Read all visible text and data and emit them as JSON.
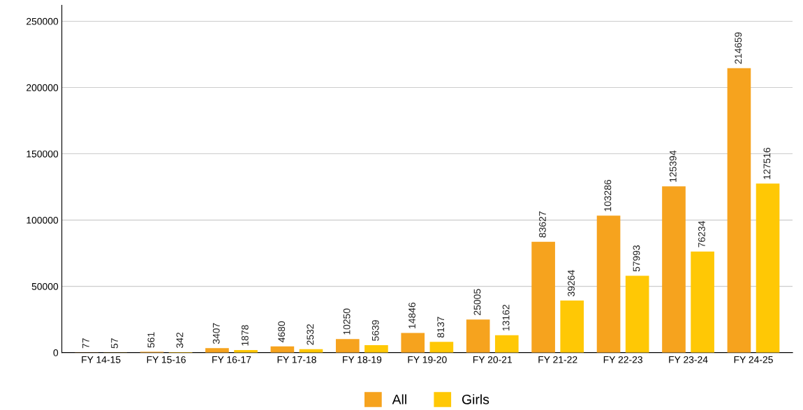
{
  "chart_data": {
    "type": "bar",
    "categories": [
      "FY 14-15",
      "FY 15-16",
      "FY 16-17",
      "FY 17-18",
      "FY 18-19",
      "FY 19-20",
      "FY 20-21",
      "FY 21-22",
      "FY 22-23",
      "FY 23-24",
      "FY 24-25"
    ],
    "series": [
      {
        "name": "All",
        "color": "#f6a31e",
        "values": [
          77,
          561,
          3407,
          4680,
          10250,
          14846,
          25005,
          83627,
          103286,
          125394,
          214659
        ]
      },
      {
        "name": "Girls",
        "color": "#ffc805",
        "values": [
          57,
          342,
          1878,
          2532,
          5639,
          8137,
          13162,
          39264,
          57993,
          76234,
          127516
        ]
      }
    ],
    "ylim": [
      0,
      262000
    ],
    "yticks": [
      0,
      50000,
      100000,
      150000,
      200000,
      250000
    ],
    "grid": "y",
    "legend": "bottom",
    "data_labels": true
  }
}
